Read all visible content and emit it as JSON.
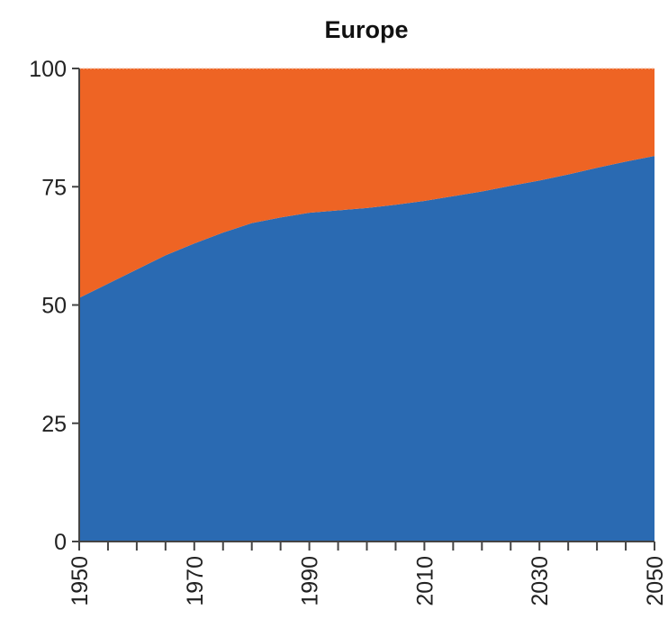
{
  "chart_data": {
    "type": "area",
    "stacked": true,
    "percent_stacked": true,
    "title": "Europe",
    "xlabel": "",
    "ylabel": "",
    "xlim": [
      1950,
      2050
    ],
    "ylim": [
      0,
      100
    ],
    "x_ticks": [
      1950,
      1970,
      1990,
      2010,
      2030,
      2050
    ],
    "x_minor_tick_step": 5,
    "y_ticks": [
      0,
      25,
      50,
      75,
      100
    ],
    "grid": false,
    "legend": "none",
    "x": [
      1950,
      1955,
      1960,
      1965,
      1970,
      1975,
      1980,
      1985,
      1990,
      1995,
      2000,
      2005,
      2010,
      2015,
      2020,
      2025,
      2030,
      2035,
      2040,
      2045,
      2050
    ],
    "series": [
      {
        "color": "#2a6ab2",
        "values": [
          51.5,
          54.5,
          57.5,
          60.5,
          63.0,
          65.3,
          67.3,
          68.5,
          69.5,
          70.0,
          70.5,
          71.2,
          72.0,
          73.0,
          74.0,
          75.2,
          76.3,
          77.6,
          79.0,
          80.3,
          81.5
        ]
      },
      {
        "color": "#ee6424",
        "values": [
          48.5,
          45.5,
          42.5,
          39.5,
          37.0,
          34.7,
          32.7,
          31.5,
          30.5,
          30.0,
          29.5,
          28.8,
          28.0,
          27.0,
          26.0,
          24.8,
          23.7,
          22.4,
          21.0,
          19.7,
          18.5
        ]
      }
    ]
  }
}
